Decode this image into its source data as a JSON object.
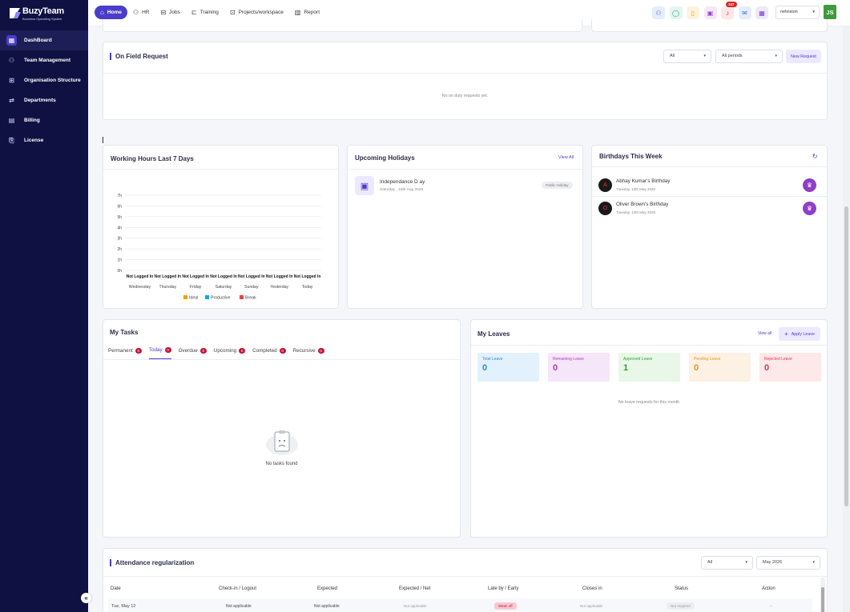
{
  "app": {
    "name": "BuzyTeam",
    "tagline": "Business Operating System"
  },
  "sidebar": {
    "items": [
      {
        "label": "DashBoard",
        "icon": "dashboard-icon",
        "active": true
      },
      {
        "label": "Team Management",
        "icon": "team-icon"
      },
      {
        "label": "Organisation Structure",
        "icon": "org-chart-icon"
      },
      {
        "label": "Departments",
        "icon": "departments-icon"
      },
      {
        "label": "Billing",
        "icon": "billing-icon"
      },
      {
        "label": "License",
        "icon": "license-icon"
      }
    ],
    "collapse_label": "«"
  },
  "header": {
    "nav": [
      {
        "label": "Home",
        "active": true
      },
      {
        "label": "HR"
      },
      {
        "label": "Jobs"
      },
      {
        "label": "Training"
      },
      {
        "label": "Projects/workspace"
      },
      {
        "label": "Report"
      }
    ],
    "notification_count": "107",
    "org_select": "netvision",
    "avatar_initials": "JS"
  },
  "on_field": {
    "title": "On Field Request",
    "filter_status": "All",
    "filter_period": "All periods",
    "new_button": "New Request",
    "empty_text": "No on duty requests yet."
  },
  "working_hours": {
    "title": "Working Hours Last 7 Days",
    "legend": [
      "Ideal",
      "Productive",
      "Break"
    ]
  },
  "chart_data": {
    "type": "bar",
    "title": "Working Hours Last 7 Days",
    "categories": [
      "Wednesday",
      "Thursday",
      "Friday",
      "Saturday",
      "Sunday",
      "Yesterday",
      "Today"
    ],
    "y_ticks": [
      "7h",
      "6h",
      "5h",
      "4h",
      "3h",
      "2h",
      "1h",
      "0h"
    ],
    "ylim": [
      0,
      7
    ],
    "bar_labels": [
      "Not Logged In",
      "Not Logged In",
      "Not Logged In",
      "Not Logged In",
      "Not Logged In",
      "Not Logged In",
      "Not Logged In"
    ],
    "series": [
      {
        "name": "Ideal",
        "values": [
          0,
          0,
          0,
          0,
          0,
          0,
          0
        ],
        "color": "#f59e0b"
      },
      {
        "name": "Productive",
        "values": [
          0,
          0,
          0,
          0,
          0,
          0,
          0
        ],
        "color": "#0ea5e9"
      },
      {
        "name": "Break",
        "values": [
          0,
          0,
          0,
          0,
          0,
          0,
          0
        ],
        "color": "#ef4444"
      }
    ],
    "grid": true,
    "legend_position": "bottom"
  },
  "holidays": {
    "title": "Upcoming Holidays",
    "view_all": "View All",
    "items": [
      {
        "name": "Independance D ay",
        "date": "Saturday , 15th Aug 2026",
        "type": "Public Holiday"
      }
    ]
  },
  "birthdays": {
    "title": "Birthdays This Week",
    "items": [
      {
        "name": "Abhay Kumar's Birthday",
        "date": "Tuesday, 12th May 2026",
        "initial": "A"
      },
      {
        "name": "Oliver Brown's Birthday",
        "date": "Tuesday, 12th May 2026",
        "initial": "O"
      }
    ]
  },
  "tasks": {
    "title": "My Tasks",
    "tabs": [
      {
        "label": "Permanent",
        "count": "0"
      },
      {
        "label": "Today",
        "count": "0",
        "active": true
      },
      {
        "label": "Overdue",
        "count": "0"
      },
      {
        "label": "Upcoming",
        "count": "0"
      },
      {
        "label": "Completed",
        "count": "0"
      },
      {
        "label": "Recursive",
        "count": "0"
      }
    ],
    "empty_text": "No tasks found"
  },
  "leaves": {
    "title": "My Leaves",
    "view_all": "View all",
    "apply_button": "Apply Leave",
    "stats": [
      {
        "label": "Total Leave",
        "value": "0",
        "bg": "#e3f1fc",
        "color": "#2b88d8"
      },
      {
        "label": "Remaining Leave",
        "value": "0",
        "bg": "#f6e6fa",
        "color": "#a83ec0"
      },
      {
        "label": "Approved Leave",
        "value": "1",
        "bg": "#e8f7e8",
        "color": "#3a9a3a"
      },
      {
        "label": "Pending Leave",
        "value": "0",
        "bg": "#fdf1e3",
        "color": "#e9921a"
      },
      {
        "label": "Rejected Leave",
        "value": "0",
        "bg": "#fde8ea",
        "color": "#d93a4a"
      }
    ],
    "empty_text": "No leave requests for this month"
  },
  "attendance": {
    "title": "Attendance regularization",
    "filter_status": "All",
    "filter_month": "May 2026",
    "columns": [
      "Date",
      "Check-in / Logout",
      "Expected",
      "Expected / Net",
      "Late by / Early",
      "Closes in",
      "Status",
      "Action"
    ],
    "rows": [
      {
        "date": "Tue, May 12",
        "checkin": "Not applicable",
        "expected": "Not applicable",
        "expected_net": "Not applicable",
        "late": "Week off",
        "closes": "Not applicable",
        "status": "Not required",
        "action": "--"
      }
    ]
  }
}
